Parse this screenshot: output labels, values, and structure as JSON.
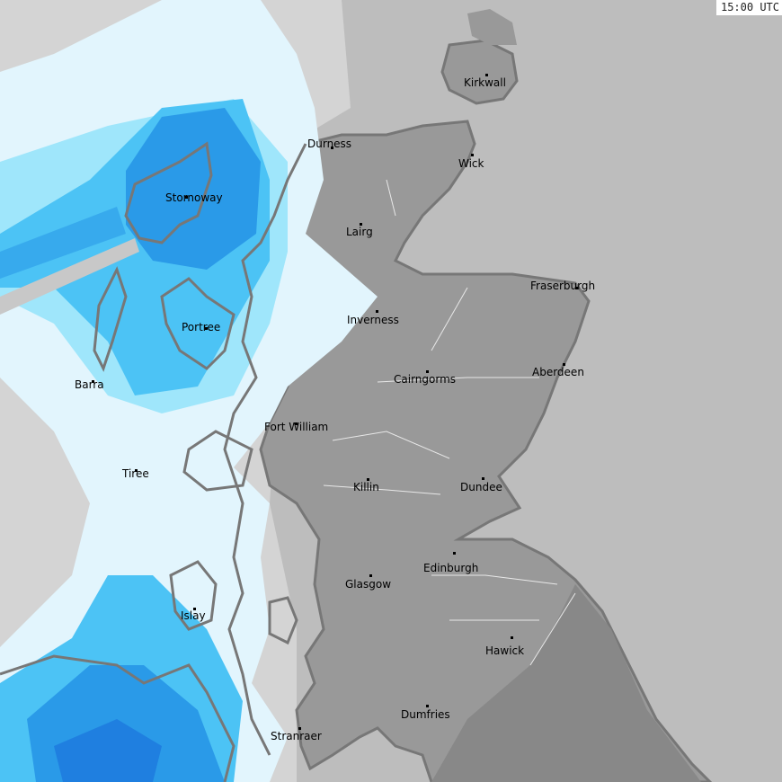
{
  "timestamp": "15:00 UTC",
  "colors": {
    "sea": "#bdbdbd",
    "land": "#999999",
    "land_dark": "#888888",
    "coastline": "#777777",
    "precip_light": "#e2f5fd",
    "precip_low": "#9fe6fb",
    "precip_moderate": "#4cc3f5",
    "precip_heavy": "#2a9ae8",
    "precip_very_heavy": "#1f7fe0"
  },
  "cities": [
    {
      "name": "Kirkwall"
    },
    {
      "name": "Durness"
    },
    {
      "name": "Wick"
    },
    {
      "name": "Stornoway"
    },
    {
      "name": "Lairg"
    },
    {
      "name": "Fraserburgh"
    },
    {
      "name": "Inverness"
    },
    {
      "name": "Portree"
    },
    {
      "name": "Aberdeen"
    },
    {
      "name": "Barra"
    },
    {
      "name": "Cairngorms"
    },
    {
      "name": "Fort William"
    },
    {
      "name": "Tiree"
    },
    {
      "name": "Killin"
    },
    {
      "name": "Dundee"
    },
    {
      "name": "Edinburgh"
    },
    {
      "name": "Glasgow"
    },
    {
      "name": "Islay"
    },
    {
      "name": "Hawick"
    },
    {
      "name": "Dumfries"
    },
    {
      "name": "Stranraer"
    }
  ]
}
